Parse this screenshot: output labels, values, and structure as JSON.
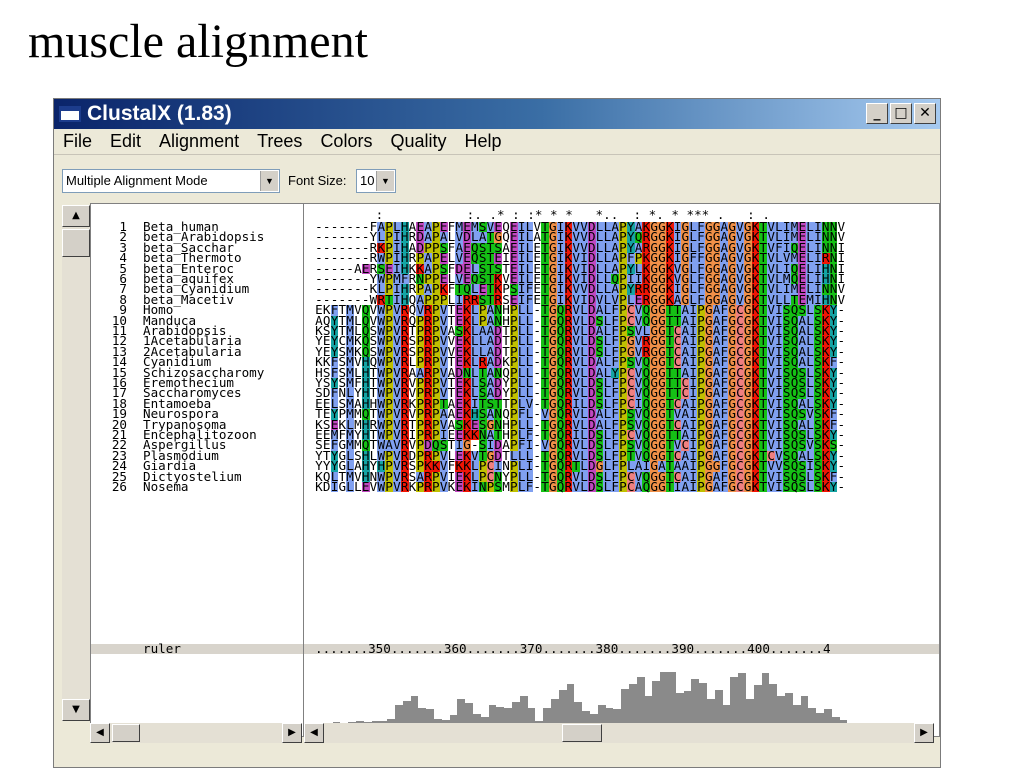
{
  "slide": {
    "title": "muscle alignment"
  },
  "window": {
    "title": "ClustalX (1.83)",
    "minimize": "_",
    "maximize": "□",
    "close": "✕"
  },
  "menu": [
    "File",
    "Edit",
    "Alignment",
    "Trees",
    "Colors",
    "Quality",
    "Help"
  ],
  "toolbar": {
    "mode_value": "Multiple Alignment Mode",
    "font_label": "Font Size:",
    "font_value": "10"
  },
  "sequences": [
    {
      "num": "1",
      "name": "Beta_human",
      "seq": "-------FAPLHAEAPEFMEMSVEQEILVTGIKVVDLLAPYAKGGKIGLFGGAGVGKTVLIMELINNV"
    },
    {
      "num": "2",
      "name": "beta_Arabidopsis",
      "seq": "-------YLPIHRDAPALVDLATGQEILATGIKVVDLLAPYQRGGKIGLFGGAGVGKTVLIMELINNV"
    },
    {
      "num": "3",
      "name": "beta_Sacchar",
      "seq": "-------RKPIHADPPSFAEQSTSAEILETGIKVVDLLAPYARGGKIGLFGGAGVGKTVFIQELINNI"
    },
    {
      "num": "4",
      "name": "beta_Thermoto",
      "seq": "-------RWPIHRPAPELVEQSTEIEILETGIKVIDLLAPFPKGGKIGFFGGAGVGKTVLVMELIRNI"
    },
    {
      "num": "5",
      "name": "beta_Enteroc",
      "seq": "-----AERSEIHKKAPSFDELSTSTEILETGIKVIDLLAPYLKGGKVGLFGGAGVGKTVLIQELIHNI"
    },
    {
      "num": "6",
      "name": "beta_aquifex",
      "seq": "-------YWPMFRNPPELVEQSTKVEILETGIKVIDLLQPIIKGGKVGLFGGAGVGKTVLMQELIHNI"
    },
    {
      "num": "7",
      "name": "beta_Cyanidium",
      "seq": "-------KLPIHRPAPKFTQLETKPSIFETGIKVVDLLAPYRRGGKIGLFGGAGVGKTVLIMELINNV"
    },
    {
      "num": "8",
      "name": "beta_Macetiv",
      "seq": "-------WRTIHQAPPPLIRRSTRSEIFETGIKVIDVLVPLERGGKAGLFGGAGVGKTVLLTEMIHNV"
    },
    {
      "num": "9",
      "name": "Homo",
      "seq": "EKFTMVQVWPVRQVRPVTEKLPANHPLL-TGQRVLDALFPCVQGGTTAIPGAFGCGKTVISQSLSKY-"
    },
    {
      "num": "10",
      "name": "Manduca",
      "seq": "AQYTMLQVWPVRQPRPVTEKLPANHPLL-TGQRVLDSLFPCVQGGTTAIPGAFGCGKTVISQALSKY-"
    },
    {
      "num": "11",
      "name": "Arabidopsis",
      "seq": "KSYTMLQSWPVRTPRPVASKLAADTPLL-TGQRVLDALFPSVLGGTCAIPGAFGCGKTVISQALSKY-"
    },
    {
      "num": "12",
      "name": "1Acetabularia",
      "seq": "YEYCMKQSWPVRSPRPVVEKLLADTPLL-TGQRVLDSLFPGVRGGTCAIPGAFGCGKTVISQALSKY-"
    },
    {
      "num": "13",
      "name": "2Acetabularia",
      "seq": "YEYSMKQSWPVRSPRPVVEKLLADTPLL-TGQRVLDSLFPGVRGGTCAIPGAFGCGKTVISQALSKY-"
    },
    {
      "num": "14",
      "name": "Cyanidium",
      "seq": "KKFSMVHQWPVRLPRPVTEKLRADKPLL-TGQRVLDALFPSVQGGTCAIPGAFGCGKTVISQALSKF-"
    },
    {
      "num": "15",
      "name": "Schizosaccharomy",
      "seq": "HSFSMLHTWPVRAARPVADNLTANQPLL-TGQRVLDALYPCVQGGTTAIPGAFGCGKTVISQSLSKY-"
    },
    {
      "num": "16",
      "name": "Eremothecium",
      "seq": "YSYSMFHTWPVRVPRPVTEKLSADYPLL-TGQRVLDSLFPCVQGGTTCIPGAFGCGKTVISQSLSKY-"
    },
    {
      "num": "17",
      "name": "Saccharomyces",
      "seq": "SDFNLYHTWPVRVPRPVTEKLSADYPLL-TGQRVLDSLFPCVQGGTTCIPGAFGCGKTVISQSLSKY-"
    },
    {
      "num": "18",
      "name": "Entamoeba",
      "seq": "EELSMAHHWPVRKPRPTAEKITSTTPLV-TGQRILDSLFPCIQGGTCAIPGAFGCGKTVISQALSKY-"
    },
    {
      "num": "19",
      "name": "Neurospora",
      "seq": "TEYPMMQTWPVRVPRPAAEKHSANQPFL-VGQRVLDALFPSVQGGTVAIPGAFGCGKTVISQSVSKF-"
    },
    {
      "num": "20",
      "name": "Trypanosoma",
      "seq": "KSEKLMHRWPVRTPRPVASKESGNHPLL-TGQRVLDALFPSVQGGTCAIPGAFGCGKTVISQALSKF-"
    },
    {
      "num": "21",
      "name": "Encephalitozoon",
      "seq": "EEMFMYHTWPVRIPRPIEEKKNATHPLF-TGQRILDSLFPCVQGGTTAIPGAFGCGKTVISQSLSKY-"
    },
    {
      "num": "22",
      "name": "Aspergillus",
      "seq": "SEFGMMQTWAVRVPDQSTIG-SIDAPFI-VGQRVLDSLFPSVQGGTVCIPGAFGCGKTVISQSVSKS-"
    },
    {
      "num": "23",
      "name": "Plasmodium",
      "seq": "YTYGLSHLWPVRDPRPVLEKVTGDTLLL-TGQRVLDSLFPTVQGGTCAIPGAFGCGKTCVSQALSKY-"
    },
    {
      "num": "24",
      "name": "Giardia",
      "seq": "YYYGLAHYHPVRSPKKVFKKLPCINPLI-TGQRTLDGLFPLAIGATAAIPGGFGCGKTVVSQSISKY-"
    },
    {
      "num": "25",
      "name": "Dictyostelium",
      "seq": "KQLTMVHNWPVRSARPVIEKLPCNYPLL-TGQRVLDSLFPCVQGGTCAIPGAFGCGKTVISQSLSKF-"
    },
    {
      "num": "26",
      "name": "Nosema",
      "seq": "KDIGLLEVWPVRKPRPVKEKINPSMPLF-TGQRVLDSLFPCAQGGTIAIPGAFGCGKTVISQSLSKY-"
    }
  ],
  "consensus": "        :           :. .* : :* * *   *..  : *. * *** .   : .",
  "ruler_label": "ruler",
  "ruler_text": ".......350.......360.......370.......380.......390.......400.......4",
  "quality_scores": [
    0.05,
    0.05,
    0.06,
    0.05,
    0.07,
    0.08,
    0.06,
    0.09,
    0.08,
    0.12,
    0.35,
    0.42,
    0.5,
    0.3,
    0.28,
    0.12,
    0.1,
    0.18,
    0.45,
    0.38,
    0.2,
    0.15,
    0.35,
    0.32,
    0.3,
    0.4,
    0.5,
    0.3,
    0.08,
    0.3,
    0.45,
    0.6,
    0.7,
    0.4,
    0.25,
    0.2,
    0.35,
    0.3,
    0.28,
    0.62,
    0.7,
    0.82,
    0.5,
    0.75,
    0.9,
    0.9,
    0.55,
    0.58,
    0.78,
    0.72,
    0.45,
    0.6,
    0.35,
    0.82,
    0.88,
    0.45,
    0.68,
    0.88,
    0.7,
    0.5,
    0.55,
    0.35,
    0.5,
    0.3,
    0.22,
    0.28,
    0.15,
    0.1
  ],
  "colors": {
    "hydrophobic": "#80a0f0",
    "polar": "#15c015",
    "negative": "#c048c0",
    "positive": "#f01505",
    "glycine": "#f09048",
    "proline": "#c0c000",
    "cysteine": "#f08080",
    "aromatic": "#15a4a4"
  }
}
